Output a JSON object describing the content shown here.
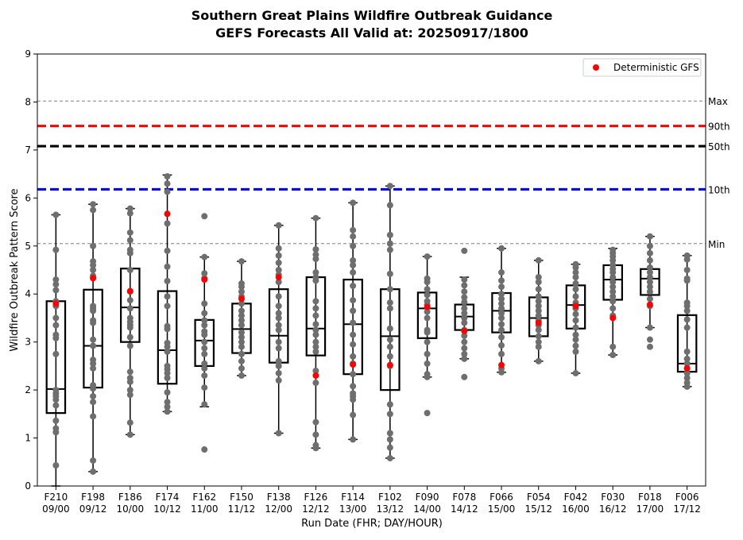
{
  "chart_data": {
    "type": "box",
    "title": "Southern Great Plains Wildfire Outbreak Guidance",
    "subtitle": "GEFS Forecasts All Valid at: 20250917/1800",
    "xlabel": "Run Date (FHR; DAY/HOUR)",
    "ylabel": "Wildfire Outbreak Pattern Score",
    "ylim": [
      0,
      9
    ],
    "yticks": [
      "0",
      "1",
      "2",
      "3",
      "4",
      "5",
      "6",
      "7",
      "8",
      "9"
    ],
    "categories": [
      {
        "fhr": "F210",
        "day": "09/00"
      },
      {
        "fhr": "F198",
        "day": "09/12"
      },
      {
        "fhr": "F186",
        "day": "10/00"
      },
      {
        "fhr": "F174",
        "day": "10/12"
      },
      {
        "fhr": "F162",
        "day": "11/00"
      },
      {
        "fhr": "F150",
        "day": "11/12"
      },
      {
        "fhr": "F138",
        "day": "12/00"
      },
      {
        "fhr": "F126",
        "day": "12/12"
      },
      {
        "fhr": "F114",
        "day": "13/00"
      },
      {
        "fhr": "F102",
        "day": "13/12"
      },
      {
        "fhr": "F090",
        "day": "14/00"
      },
      {
        "fhr": "F078",
        "day": "14/12"
      },
      {
        "fhr": "F066",
        "day": "15/00"
      },
      {
        "fhr": "F054",
        "day": "15/12"
      },
      {
        "fhr": "F042",
        "day": "16/00"
      },
      {
        "fhr": "F030",
        "day": "16/12"
      },
      {
        "fhr": "F018",
        "day": "17/00"
      },
      {
        "fhr": "F006",
        "day": "17/12"
      }
    ],
    "boxes": [
      {
        "whislo": 0.0,
        "q1": 1.52,
        "med": 2.02,
        "q3": 3.85,
        "whishi": 5.65,
        "deterministic": 3.8,
        "members": [
          0.43,
          1.12,
          1.2,
          1.36,
          1.68,
          1.8,
          1.87,
          1.93,
          2.0,
          2.75,
          3.08,
          3.15,
          3.35,
          3.5,
          3.75,
          3.85,
          4.08,
          4.2,
          4.3,
          4.92,
          5.65
        ]
      },
      {
        "whislo": 0.3,
        "q1": 2.05,
        "med": 2.92,
        "q3": 4.09,
        "whishi": 5.87,
        "deterministic": 4.33,
        "members": [
          0.3,
          0.53,
          1.45,
          1.75,
          1.87,
          2.03,
          2.1,
          2.45,
          2.55,
          2.63,
          2.92,
          3.05,
          3.4,
          3.45,
          3.65,
          3.7,
          3.75,
          4.38,
          4.5,
          4.6,
          4.68,
          5.0,
          5.75,
          5.87
        ]
      },
      {
        "whislo": 1.07,
        "q1": 3.0,
        "med": 3.72,
        "q3": 4.53,
        "whishi": 5.78,
        "deterministic": 4.06,
        "members": [
          1.07,
          1.32,
          1.9,
          2.0,
          2.17,
          2.25,
          2.38,
          2.92,
          3.1,
          3.3,
          3.35,
          3.42,
          3.5,
          3.7,
          3.87,
          4.05,
          4.5,
          4.85,
          4.92,
          5.12,
          5.28,
          5.68,
          5.78
        ]
      },
      {
        "whislo": 1.55,
        "q1": 2.13,
        "med": 2.83,
        "q3": 4.06,
        "whishi": 6.48,
        "deterministic": 5.67,
        "members": [
          1.55,
          1.65,
          1.75,
          1.95,
          2.25,
          2.35,
          2.43,
          2.5,
          2.8,
          2.9,
          2.98,
          3.27,
          3.33,
          3.75,
          3.95,
          4.27,
          4.57,
          4.9,
          5.47,
          6.13,
          6.3,
          6.45
        ]
      },
      {
        "whislo": 1.65,
        "q1": 2.5,
        "med": 3.03,
        "q3": 3.46,
        "whishi": 4.77,
        "deterministic": 4.3,
        "members": [
          0.76,
          1.7,
          2.05,
          2.3,
          2.45,
          2.55,
          2.75,
          2.87,
          3.0,
          3.15,
          3.22,
          3.35,
          3.45,
          3.6,
          3.8,
          4.33,
          4.43,
          4.77,
          5.62
        ]
      },
      {
        "whislo": 2.3,
        "q1": 2.77,
        "med": 3.27,
        "q3": 3.8,
        "whishi": 4.68,
        "deterministic": 3.9,
        "members": [
          2.3,
          2.45,
          2.6,
          2.75,
          2.9,
          3.0,
          3.1,
          3.2,
          3.35,
          3.45,
          3.55,
          3.65,
          3.8,
          3.95,
          4.05,
          4.15,
          4.22,
          4.68
        ]
      },
      {
        "whislo": 1.1,
        "q1": 2.57,
        "med": 3.13,
        "q3": 4.1,
        "whishi": 5.43,
        "deterministic": 4.35,
        "members": [
          1.1,
          2.2,
          2.35,
          2.5,
          2.6,
          2.87,
          3.0,
          3.25,
          3.35,
          3.5,
          3.6,
          3.75,
          3.95,
          4.25,
          4.4,
          4.5,
          4.65,
          4.8,
          4.95,
          5.43
        ]
      },
      {
        "whislo": 0.79,
        "q1": 2.72,
        "med": 3.28,
        "q3": 4.35,
        "whishi": 5.58,
        "deterministic": 2.3,
        "members": [
          0.79,
          0.85,
          1.07,
          1.33,
          2.15,
          2.4,
          2.8,
          2.9,
          3.0,
          3.15,
          3.25,
          3.37,
          3.55,
          3.7,
          3.85,
          4.28,
          4.35,
          4.45,
          4.73,
          4.82,
          4.93,
          5.58
        ]
      },
      {
        "whislo": 0.97,
        "q1": 2.33,
        "med": 3.37,
        "q3": 4.3,
        "whishi": 5.9,
        "deterministic": 2.53,
        "members": [
          0.97,
          1.48,
          1.8,
          1.87,
          1.93,
          2.08,
          2.33,
          2.55,
          2.7,
          2.95,
          3.15,
          3.4,
          3.65,
          3.87,
          4.17,
          4.45,
          4.6,
          4.7,
          5.0,
          5.2,
          5.33,
          5.9
        ]
      },
      {
        "whislo": 0.58,
        "q1": 2.0,
        "med": 3.12,
        "q3": 4.1,
        "whishi": 6.25,
        "deterministic": 2.52,
        "members": [
          0.58,
          0.8,
          0.97,
          1.1,
          1.5,
          1.7,
          2.5,
          2.7,
          2.9,
          3.05,
          3.28,
          3.7,
          3.82,
          4.1,
          4.42,
          4.92,
          5.05,
          5.23,
          5.85,
          6.25
        ]
      },
      {
        "whislo": 2.27,
        "q1": 3.08,
        "med": 3.7,
        "q3": 4.03,
        "whishi": 4.78,
        "deterministic": 3.73,
        "members": [
          1.52,
          2.27,
          2.33,
          2.55,
          2.75,
          3.0,
          3.2,
          3.25,
          3.5,
          3.63,
          3.78,
          3.85,
          3.98,
          4.1,
          4.25,
          4.32,
          4.78
        ]
      },
      {
        "whislo": 2.65,
        "q1": 3.25,
        "med": 3.53,
        "q3": 3.78,
        "whishi": 4.35,
        "deterministic": 3.23,
        "members": [
          2.27,
          2.65,
          2.75,
          2.87,
          3.0,
          3.13,
          3.25,
          3.4,
          3.5,
          3.6,
          3.7,
          3.83,
          3.93,
          4.05,
          4.18,
          4.3,
          4.9
        ]
      },
      {
        "whislo": 2.37,
        "q1": 3.2,
        "med": 3.65,
        "q3": 4.02,
        "whishi": 4.95,
        "deterministic": 2.52,
        "members": [
          2.37,
          2.45,
          2.75,
          2.93,
          3.1,
          3.25,
          3.37,
          3.5,
          3.6,
          3.7,
          3.8,
          3.9,
          4.0,
          4.15,
          4.28,
          4.45,
          4.95
        ]
      },
      {
        "whislo": 2.6,
        "q1": 3.12,
        "med": 3.5,
        "q3": 3.93,
        "whishi": 4.7,
        "deterministic": 3.4,
        "members": [
          2.6,
          2.9,
          3.0,
          3.12,
          3.25,
          3.35,
          3.45,
          3.55,
          3.65,
          3.75,
          3.85,
          3.95,
          4.1,
          4.25,
          4.35,
          4.7
        ]
      },
      {
        "whislo": 2.35,
        "q1": 3.28,
        "med": 3.77,
        "q3": 4.18,
        "whishi": 4.62,
        "deterministic": 3.75,
        "members": [
          2.35,
          2.8,
          2.92,
          3.05,
          3.15,
          3.3,
          3.45,
          3.58,
          3.7,
          3.82,
          3.95,
          4.1,
          4.22,
          4.35,
          4.45,
          4.55,
          4.62
        ]
      },
      {
        "whislo": 2.73,
        "q1": 3.88,
        "med": 4.3,
        "q3": 4.6,
        "whishi": 4.95,
        "deterministic": 3.5,
        "members": [
          2.73,
          2.9,
          3.55,
          3.7,
          3.85,
          3.95,
          4.05,
          4.15,
          4.25,
          4.35,
          4.45,
          4.52,
          4.6,
          4.7,
          4.78,
          4.85,
          4.92
        ]
      },
      {
        "whislo": 3.3,
        "q1": 3.98,
        "med": 4.32,
        "q3": 4.52,
        "whishi": 5.2,
        "deterministic": 3.78,
        "members": [
          2.9,
          3.05,
          3.3,
          3.75,
          3.9,
          4.05,
          4.15,
          4.25,
          4.35,
          4.45,
          4.55,
          4.7,
          4.85,
          5.0,
          5.2
        ]
      },
      {
        "whislo": 2.07,
        "q1": 2.38,
        "med": 2.55,
        "q3": 3.56,
        "whishi": 4.8,
        "deterministic": 2.45,
        "members": [
          2.07,
          2.15,
          2.25,
          2.35,
          2.45,
          2.55,
          2.65,
          2.8,
          3.3,
          3.47,
          3.65,
          3.75,
          3.82,
          4.28,
          4.32,
          4.5,
          4.72,
          4.8
        ]
      }
    ],
    "reference_lines": [
      {
        "label": "Max",
        "value": 8.02,
        "color": "#808080",
        "style": "thin-dashed"
      },
      {
        "label": "90th",
        "value": 7.5,
        "color": "#ff0000",
        "style": "thick-dashed"
      },
      {
        "label": "50th",
        "value": 7.08,
        "color": "#000000",
        "style": "thick-dashed"
      },
      {
        "label": "10th",
        "value": 6.18,
        "color": "#0000ff",
        "style": "thick-dashed"
      },
      {
        "label": "Min",
        "value": 5.05,
        "color": "#808080",
        "style": "thin-dashed"
      }
    ],
    "legend": {
      "label": "Deterministic GFS",
      "position": "top-right"
    },
    "colors": {
      "member": "#6e6e6e",
      "deterministic": "#ff0000",
      "box": "#000000"
    },
    "grid": false
  }
}
